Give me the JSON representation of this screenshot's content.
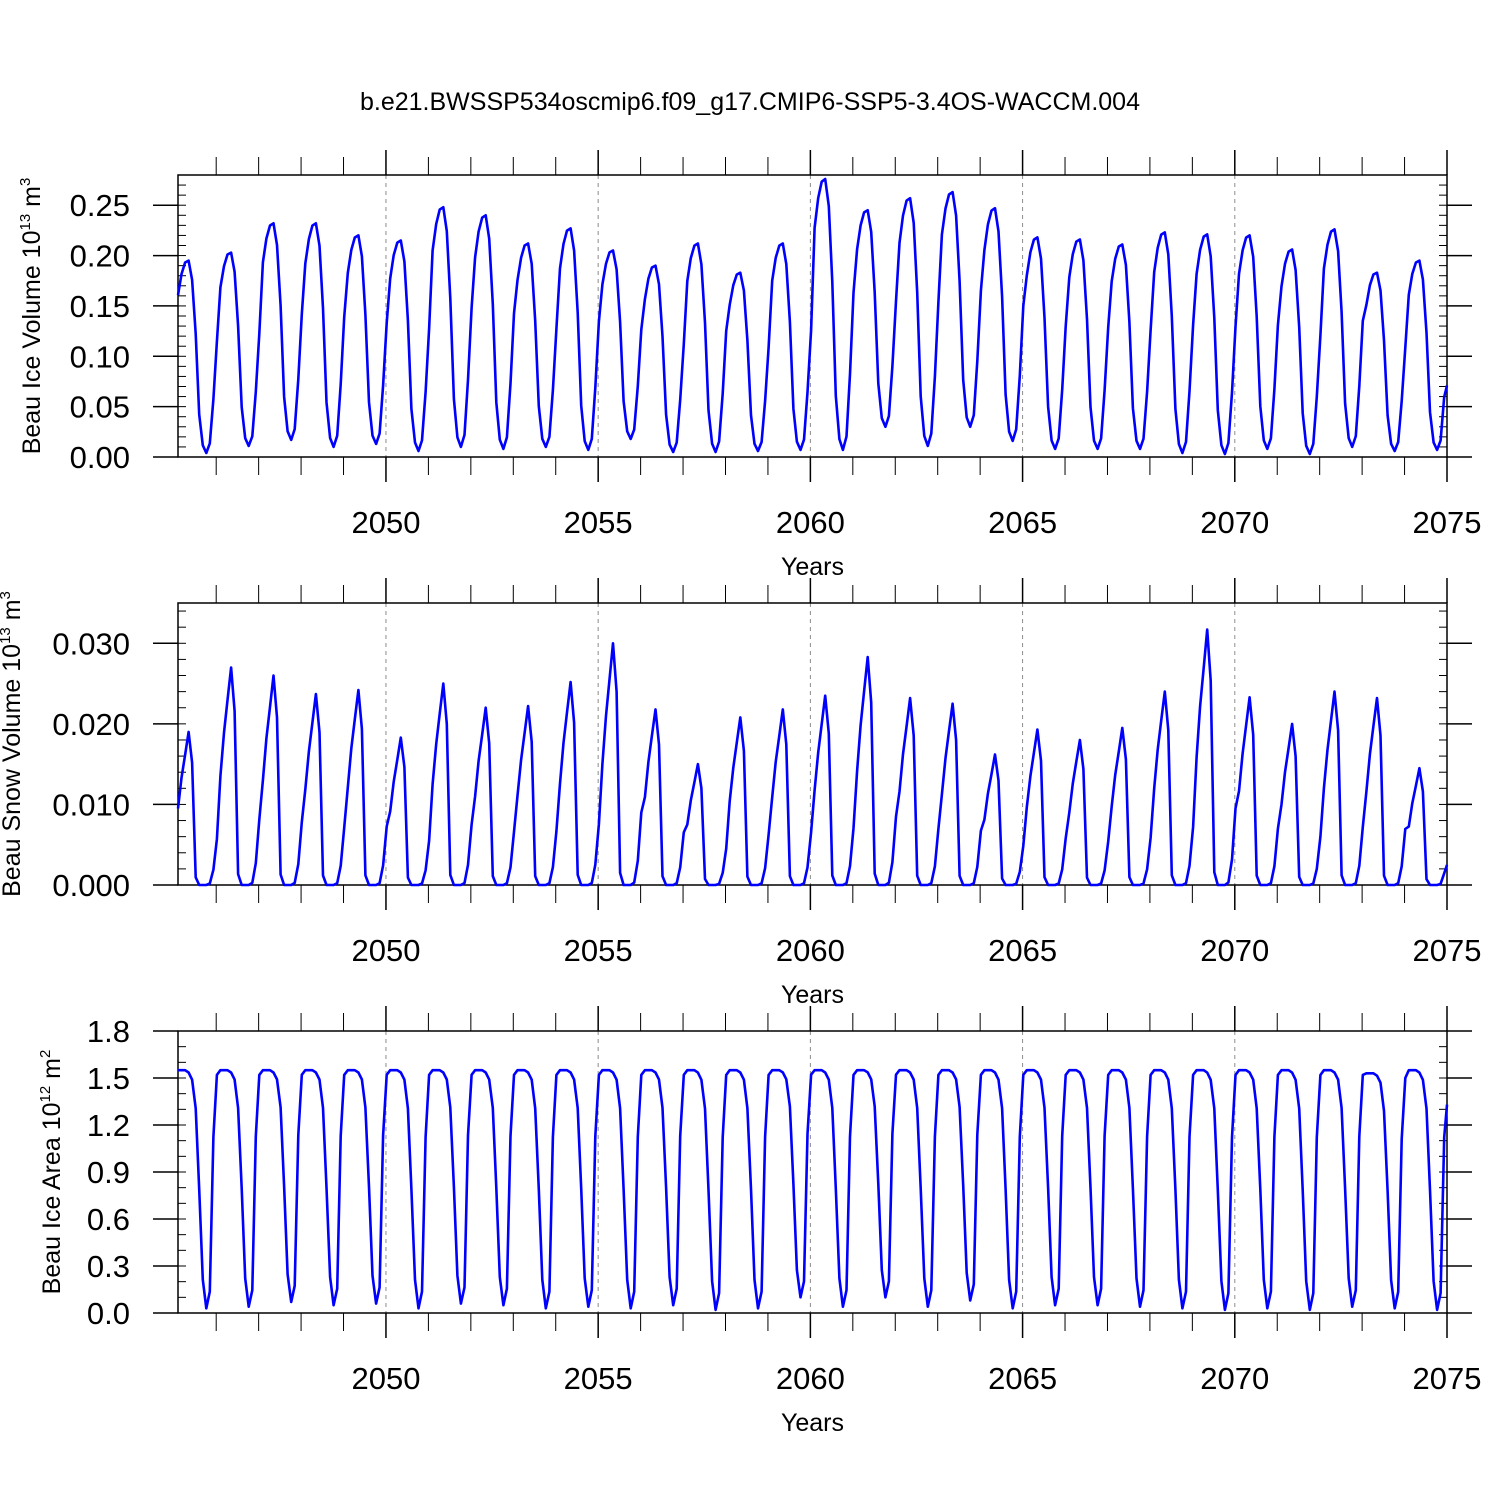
{
  "title": "b.e21.BWSSP534oscmip6.f09_g17.CMIP6-SSP5-3.4OS-WACCM.004",
  "colors": {
    "series": "#0000ff",
    "axis": "#000000",
    "grid": "#8c8c8c"
  },
  "chart_data": [
    {
      "type": "line",
      "name": "beau-ice-volume",
      "ylabel_main": "Beau Ice Volume 10",
      "ylabel_exp": "13",
      "ylabel_unit": " m",
      "ylabel_unit_exp": "3",
      "xlabel": "Years",
      "xlim": [
        2045.1,
        2075.0
      ],
      "ylim": [
        0,
        0.28
      ],
      "yticks": [
        0.0,
        0.05,
        0.1,
        0.15,
        0.2,
        0.25
      ],
      "ytick_labels": [
        "0.00",
        "0.05",
        "0.10",
        "0.15",
        "0.20",
        "0.25"
      ],
      "yminor_step": 0.01,
      "xticks": [
        2050,
        2055,
        2060,
        2065,
        2070,
        2075
      ],
      "xtick_labels": [
        "2050",
        "2055",
        "2060",
        "2065",
        "2070",
        "2075"
      ],
      "x_start": 2045.1,
      "monthly": true,
      "annual_max": [
        0.195,
        0.203,
        0.232,
        0.232,
        0.22,
        0.215,
        0.248,
        0.24,
        0.212,
        0.227,
        0.205,
        0.19,
        0.212,
        0.183,
        0.212,
        0.276,
        0.245,
        0.257,
        0.263,
        0.247,
        0.218,
        0.216,
        0.211,
        0.223,
        0.221,
        0.22,
        0.206,
        0.226,
        0.183,
        0.195
      ],
      "annual_min": [
        0.004,
        0.011,
        0.017,
        0.01,
        0.013,
        0.006,
        0.01,
        0.008,
        0.01,
        0.007,
        0.018,
        0.005,
        0.005,
        0.006,
        0.007,
        0.007,
        0.03,
        0.011,
        0.03,
        0.016,
        0.008,
        0.008,
        0.008,
        0.004,
        0.003,
        0.008,
        0.003,
        0.01,
        0.006,
        0.007
      ],
      "end_value": 0.071
    },
    {
      "type": "line",
      "name": "beau-snow-volume",
      "ylabel_main": "Beau Snow Volume 10",
      "ylabel_exp": "13",
      "ylabel_unit": " m",
      "ylabel_unit_exp": "3",
      "xlabel": "Years",
      "xlim": [
        2045.1,
        2075.0
      ],
      "ylim": [
        0,
        0.035
      ],
      "yticks": [
        0.0,
        0.01,
        0.02,
        0.03
      ],
      "ytick_labels": [
        "0.000",
        "0.010",
        "0.020",
        "0.030"
      ],
      "yminor_step": 0.002,
      "xticks": [
        2050,
        2055,
        2060,
        2065,
        2070,
        2075
      ],
      "xtick_labels": [
        "2050",
        "2055",
        "2060",
        "2065",
        "2070",
        "2075"
      ],
      "x_start": 2045.1,
      "monthly": true,
      "annual_max": [
        0.019,
        0.027,
        0.026,
        0.0237,
        0.0242,
        0.0183,
        0.025,
        0.022,
        0.0222,
        0.0252,
        0.03,
        0.0218,
        0.015,
        0.0208,
        0.0218,
        0.0235,
        0.0283,
        0.0232,
        0.0225,
        0.0162,
        0.0193,
        0.018,
        0.0195,
        0.024,
        0.0317,
        0.0233,
        0.02,
        0.024,
        0.0232,
        0.0145
      ],
      "annual_min": [
        0.0,
        0.0,
        0.0,
        0.0,
        0.0,
        0.0,
        0.0,
        0.0,
        0.0,
        0.0,
        0.0,
        0.0,
        0.0,
        0.0,
        0.0,
        0.0,
        0.0,
        0.0,
        0.0,
        0.0,
        0.0,
        0.0,
        0.0,
        0.0,
        0.0,
        0.0,
        0.0,
        0.0,
        0.0,
        0.0
      ],
      "end_value": 0.0025
    },
    {
      "type": "line",
      "name": "beau-ice-area",
      "ylabel_main": "Beau Ice Area 10",
      "ylabel_exp": "12",
      "ylabel_unit": " m",
      "ylabel_unit_exp": "2",
      "xlabel": "Years",
      "xlim": [
        2045.1,
        2075.0
      ],
      "ylim": [
        0,
        1.8
      ],
      "yticks": [
        0.0,
        0.3,
        0.6,
        0.9,
        1.2,
        1.5,
        1.8
      ],
      "ytick_labels": [
        "0.0",
        "0.3",
        "0.6",
        "0.9",
        "1.2",
        "1.5",
        "1.8"
      ],
      "yminor_step": 0.1,
      "xticks": [
        2050,
        2055,
        2060,
        2065,
        2070,
        2075
      ],
      "xtick_labels": [
        "2050",
        "2055",
        "2060",
        "2065",
        "2070",
        "2075"
      ],
      "x_start": 2045.1,
      "monthly": true,
      "annual_max": [
        1.55,
        1.55,
        1.55,
        1.55,
        1.55,
        1.55,
        1.55,
        1.55,
        1.55,
        1.55,
        1.55,
        1.55,
        1.55,
        1.55,
        1.55,
        1.55,
        1.55,
        1.55,
        1.55,
        1.55,
        1.55,
        1.55,
        1.55,
        1.55,
        1.55,
        1.55,
        1.55,
        1.55,
        1.53,
        1.55
      ],
      "annual_min": [
        0.03,
        0.04,
        0.07,
        0.05,
        0.06,
        0.03,
        0.06,
        0.05,
        0.03,
        0.04,
        0.03,
        0.05,
        0.02,
        0.03,
        0.1,
        0.04,
        0.1,
        0.04,
        0.08,
        0.03,
        0.05,
        0.05,
        0.04,
        0.03,
        0.02,
        0.03,
        0.02,
        0.04,
        0.03,
        0.02
      ],
      "end_value": 1.33
    }
  ]
}
